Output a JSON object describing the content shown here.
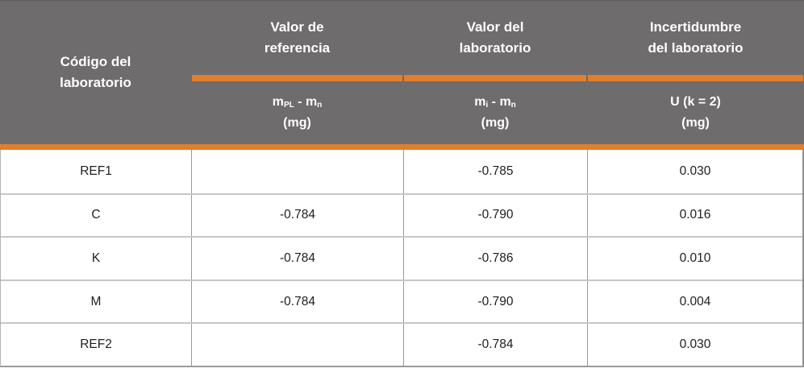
{
  "colors": {
    "header_background": "#6E6C6D",
    "accent_orange": "#E07F2D",
    "header_text": "#FFFFFF",
    "body_text": "#1D1D1D",
    "grid_line": "#A8A8A8"
  },
  "chart_data": {
    "type": "table",
    "header": {
      "col1": {
        "label": "Código del laboratorio"
      },
      "col2": {
        "label": "Valor de referencia",
        "formula": {
          "m1": "m",
          "sub1": "PL",
          "minus": " - ",
          "m2": "m",
          "sub2": "n"
        },
        "unit": "(mg)"
      },
      "col3": {
        "label": "Valor del laboratorio",
        "formula": {
          "m1": "m",
          "sub1": "i",
          "minus": " - ",
          "m2": "m",
          "sub2": "n"
        },
        "unit": "(mg)"
      },
      "col4": {
        "label": "Incertidumbre del laboratorio",
        "formula_text": "U (k = 2)",
        "unit": "(mg)"
      }
    },
    "rows": [
      [
        "REF1",
        "",
        "-0.785",
        "0.030"
      ],
      [
        "C",
        "-0.784",
        "-0.790",
        "0.016"
      ],
      [
        "K",
        "-0.784",
        "-0.786",
        "0.010"
      ],
      [
        "M",
        "-0.784",
        "-0.790",
        "0.004"
      ],
      [
        "REF2",
        "",
        "-0.784",
        "0.030"
      ]
    ]
  }
}
